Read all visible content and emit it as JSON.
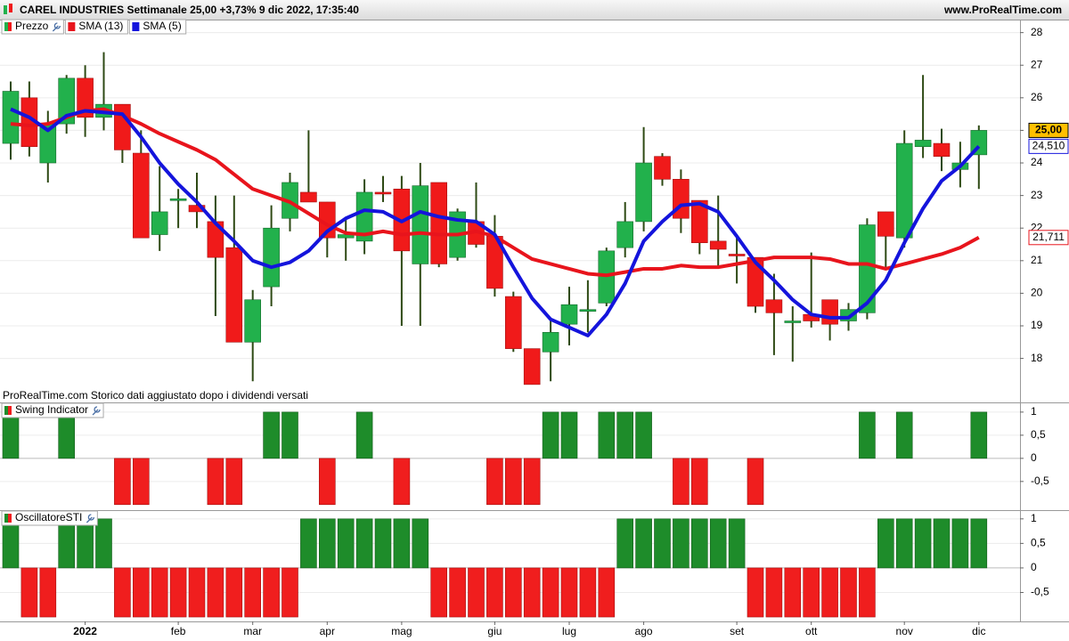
{
  "header": {
    "title": "CAREL INDUSTRIES Settimanale 25,00 +3,73% 9 dic 2022, 17:35:40",
    "site": "www.ProRealTime.com"
  },
  "note": "ProRealTime.com Storico dati aggiustato dopo i dividendi versati",
  "chart_data": [
    {
      "type": "candlestick",
      "categories": [
        null,
        null,
        null,
        null,
        "2022",
        null,
        null,
        null,
        null,
        "feb",
        null,
        null,
        null,
        "mar",
        null,
        null,
        null,
        "apr",
        null,
        null,
        null,
        "mag",
        null,
        null,
        null,
        null,
        "giu",
        null,
        null,
        null,
        "lug",
        null,
        null,
        null,
        "ago",
        null,
        null,
        null,
        null,
        "set",
        null,
        null,
        null,
        "ott",
        null,
        null,
        null,
        null,
        "nov",
        null,
        null,
        null,
        "dic"
      ],
      "series": [
        {
          "name": "Prezzo",
          "up_color": "#22b14c",
          "down_color": "#f01a1a",
          "wick_color": "#2e4a14",
          "open": [
            24.6,
            26.0,
            24.0,
            25.2,
            26.6,
            25.4,
            25.8,
            24.3,
            21.8,
            22.85,
            22.7,
            22.2,
            21.4,
            18.5,
            20.2,
            22.3,
            23.1,
            22.8,
            21.7,
            21.6,
            23.1,
            23.2,
            20.9,
            23.4,
            21.1,
            22.2,
            21.75,
            19.9,
            18.3,
            18.2,
            19.05,
            19.45,
            19.7,
            21.4,
            22.2,
            24.2,
            23.5,
            22.85,
            21.6,
            21.2,
            21.1,
            19.8,
            19.1,
            19.35,
            19.8,
            19.15,
            19.4,
            22.5,
            21.7,
            24.5,
            24.6,
            23.8,
            24.25
          ],
          "high": [
            26.5,
            26.5,
            25.6,
            26.7,
            27.0,
            27.4,
            25.8,
            25.0,
            23.9,
            23.2,
            23.7,
            23.0,
            23.0,
            20.1,
            22.7,
            23.7,
            25.0,
            22.8,
            22.3,
            23.5,
            23.6,
            23.6,
            24.0,
            23.4,
            22.6,
            23.4,
            22.4,
            20.05,
            18.3,
            19.2,
            20.2,
            20.4,
            21.4,
            22.8,
            25.1,
            24.3,
            23.8,
            22.85,
            23.0,
            21.8,
            21.1,
            20.6,
            19.6,
            21.25,
            19.8,
            19.7,
            22.3,
            22.5,
            25.0,
            26.7,
            25.05,
            24.65,
            25.15
          ],
          "low": [
            24.1,
            24.2,
            23.4,
            24.9,
            24.8,
            25.0,
            24.0,
            21.7,
            21.3,
            22.0,
            22.0,
            19.3,
            18.5,
            17.3,
            19.6,
            21.9,
            22.8,
            21.1,
            21.0,
            21.2,
            22.8,
            19.0,
            19.0,
            20.8,
            21.0,
            21.4,
            19.9,
            18.2,
            17.2,
            17.3,
            18.4,
            18.8,
            19.6,
            21.1,
            21.9,
            23.3,
            21.85,
            21.2,
            20.8,
            20.3,
            19.4,
            18.1,
            17.9,
            18.95,
            18.55,
            18.85,
            19.2,
            20.8,
            21.4,
            24.15,
            23.75,
            23.25,
            23.2
          ],
          "close": [
            26.2,
            24.5,
            25.2,
            26.6,
            25.4,
            25.8,
            24.4,
            21.7,
            22.5,
            22.9,
            22.5,
            21.1,
            18.5,
            19.8,
            22.0,
            23.4,
            22.8,
            21.7,
            21.8,
            23.1,
            23.05,
            21.3,
            23.3,
            20.9,
            22.5,
            21.5,
            20.15,
            18.3,
            17.2,
            18.8,
            19.65,
            19.5,
            21.3,
            22.2,
            24.0,
            23.5,
            22.3,
            21.55,
            21.35,
            21.15,
            19.6,
            19.4,
            19.15,
            19.15,
            19.05,
            19.5,
            22.1,
            21.75,
            24.6,
            24.7,
            24.2,
            24.0,
            25.0
          ],
          "last_label": "25,00",
          "label_color": "#ffc000"
        },
        {
          "name": "SMA (13)",
          "color": "#e8141c",
          "values": [
            25.2,
            25.15,
            25.2,
            25.4,
            25.6,
            25.65,
            25.45,
            25.2,
            24.9,
            24.65,
            24.4,
            24.1,
            23.65,
            23.2,
            23.0,
            22.8,
            22.45,
            22.1,
            21.85,
            21.8,
            21.9,
            21.8,
            21.85,
            21.8,
            21.8,
            21.9,
            21.75,
            21.4,
            21.05,
            20.9,
            20.75,
            20.6,
            20.55,
            20.65,
            20.75,
            20.75,
            20.85,
            20.8,
            20.8,
            20.9,
            21.0,
            21.1,
            21.1,
            21.1,
            21.05,
            20.9,
            20.9,
            20.75,
            20.9,
            21.05,
            21.2,
            21.4,
            21.711
          ],
          "last_label": "21,711"
        },
        {
          "name": "SMA (5)",
          "color": "#1414dc",
          "values": [
            25.65,
            25.4,
            25.0,
            25.45,
            25.6,
            25.55,
            25.5,
            24.8,
            24.0,
            23.35,
            22.8,
            22.15,
            21.6,
            21.0,
            20.8,
            20.95,
            21.3,
            21.9,
            22.3,
            22.55,
            22.5,
            22.2,
            22.5,
            22.35,
            22.25,
            22.2,
            21.8,
            20.8,
            19.85,
            19.2,
            18.95,
            18.7,
            19.35,
            20.3,
            21.6,
            22.2,
            22.7,
            22.75,
            22.5,
            21.75,
            20.95,
            20.4,
            19.8,
            19.35,
            19.25,
            19.25,
            19.7,
            20.4,
            21.55,
            22.6,
            23.45,
            23.9,
            24.51
          ],
          "last_label": "24,510"
        }
      ],
      "ylim": [
        16.65,
        28.4
      ],
      "yticks": [
        18,
        19,
        20,
        21,
        22,
        23,
        24,
        25,
        26,
        27,
        28
      ],
      "grid": true
    },
    {
      "type": "bar",
      "title": "Swing Indicator",
      "positive_color": "#1e8c2a",
      "negative_color": "#f01e1e",
      "values": [
        1,
        0,
        0,
        1,
        0,
        0,
        -1,
        -1,
        0,
        0,
        0,
        -1,
        -1,
        0,
        1,
        1,
        0,
        -1,
        0,
        1,
        0,
        -1,
        0,
        0,
        0,
        0,
        -1,
        -1,
        -1,
        1,
        1,
        0,
        1,
        1,
        1,
        0,
        -1,
        -1,
        0,
        0,
        -1,
        0,
        0,
        0,
        0,
        0,
        1,
        0,
        1,
        0,
        0,
        0,
        1
      ],
      "ylim": [
        -1.1,
        1.19
      ],
      "yticks": [
        1,
        {
          "value": 0.5,
          "label": "0,5"
        },
        0,
        {
          "value": -0.5,
          "label": "-0,5"
        }
      ],
      "grid": true
    },
    {
      "type": "bar",
      "title": "OscillatoreSTI",
      "positive_color": "#1e8c2a",
      "negative_color": "#f01e1e",
      "values": [
        1,
        -1,
        -1,
        1,
        1,
        1,
        -1,
        -1,
        -1,
        -1,
        -1,
        -1,
        -1,
        -1,
        -1,
        -1,
        1,
        1,
        1,
        1,
        1,
        1,
        1,
        -1,
        -1,
        -1,
        -1,
        -1,
        -1,
        -1,
        -1,
        -1,
        -1,
        1,
        1,
        1,
        1,
        1,
        1,
        1,
        -1,
        -1,
        -1,
        -1,
        -1,
        -1,
        -1,
        1,
        1,
        1,
        1,
        1,
        1
      ],
      "ylim": [
        -1.09,
        1.16
      ],
      "yticks": [
        1,
        {
          "value": 0.5,
          "label": "0,5"
        },
        0,
        {
          "value": -0.5,
          "label": "-0,5"
        }
      ],
      "grid": true
    }
  ]
}
